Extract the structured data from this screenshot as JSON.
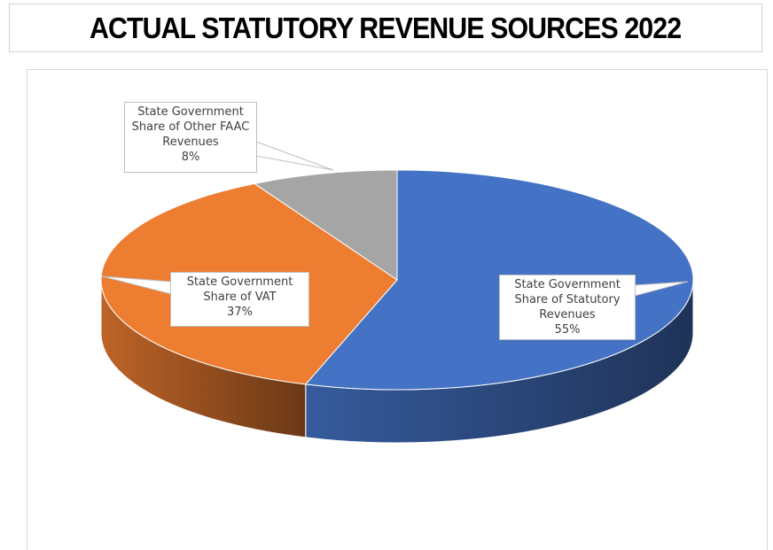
{
  "chart_data": {
    "type": "pie",
    "title": "ACTUAL STATUTORY REVENUE SOURCES 2022",
    "categories": [
      "State Government Share of Statutory Revenues",
      "State Government Share of VAT",
      "State Government Share of Other FAAC Revenues"
    ],
    "values": [
      55,
      37,
      8
    ],
    "value_labels": [
      "55%",
      "37%",
      "8%"
    ],
    "colors": [
      "#4472c4",
      "#ed7d31",
      "#a5a5a5"
    ],
    "three_d": true
  }
}
